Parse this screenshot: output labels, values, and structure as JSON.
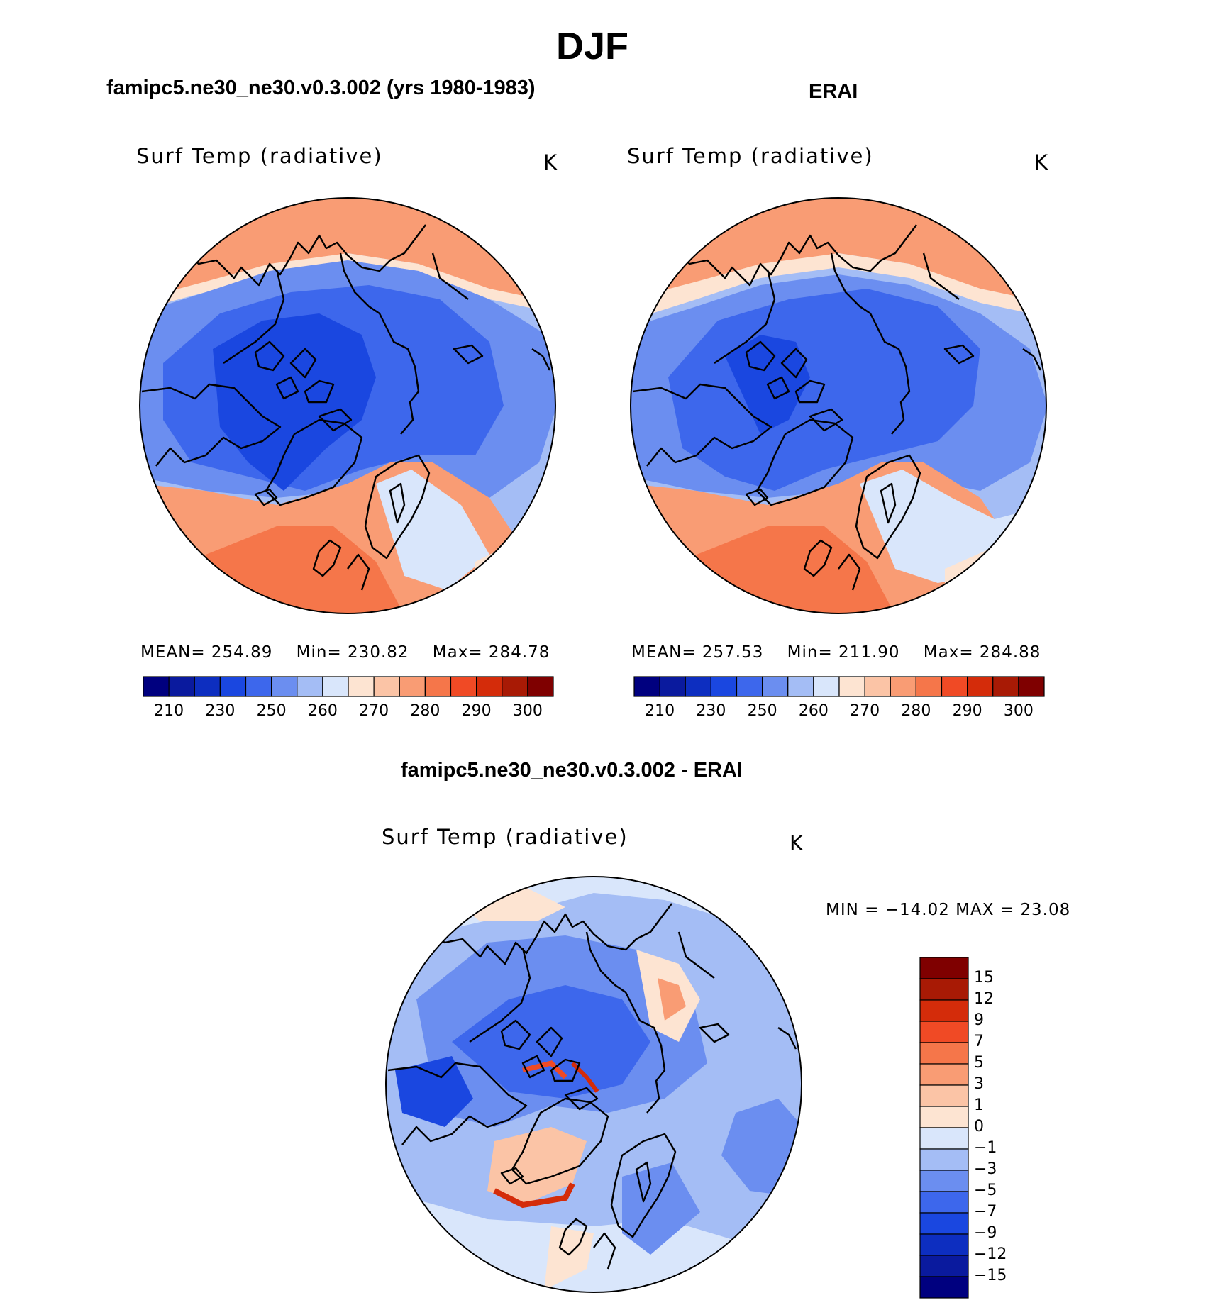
{
  "page": {
    "title": "DJF",
    "diff_title": "famipc5.ne30_ne30.v0.3.002 - ERAI"
  },
  "panels": [
    {
      "id": "model",
      "title": "famipc5.ne30_ne30.v0.3.002 (yrs 1980-1983)",
      "variable": "Surf Temp (radiative)",
      "units": "K",
      "stats": {
        "mean_label": "MEAN=",
        "mean": "254.89",
        "min_label": "Min=",
        "min": "230.82",
        "max_label": "Max=",
        "max": "284.78"
      }
    },
    {
      "id": "obs",
      "title": "ERAI",
      "variable": "Surf Temp (radiative)",
      "units": "K",
      "stats": {
        "mean_label": "MEAN=",
        "mean": "257.53",
        "min_label": "Min=",
        "min": "211.90",
        "max_label": "Max=",
        "max": "284.88"
      }
    },
    {
      "id": "diff",
      "title": "famipc5.ne30_ne30.v0.3.002 - ERAI",
      "variable": "Surf Temp (radiative)",
      "units": "K",
      "stats_text": "MIN = −14.02 MAX =   23.08"
    }
  ],
  "colorbars": {
    "absolute": {
      "colors": [
        "#00007f",
        "#0a1a9e",
        "#0d2ec0",
        "#1a47e0",
        "#3d67ec",
        "#6b8ef0",
        "#a4bdf5",
        "#d9e6fb",
        "#fde4d2",
        "#fbc4a6",
        "#f99c74",
        "#f5764a",
        "#f04a25",
        "#d42c0a",
        "#a81a05",
        "#7f0000"
      ],
      "ticks": [
        "210",
        "230",
        "250",
        "260",
        "270",
        "280",
        "290",
        "300"
      ]
    },
    "difference": {
      "colors": [
        "#00007f",
        "#0a1a9e",
        "#0d2ec0",
        "#1a47e0",
        "#3d67ec",
        "#6b8ef0",
        "#a4bdf5",
        "#d9e6fb",
        "#fde4d2",
        "#fbc4a6",
        "#f99c74",
        "#f5764a",
        "#f04a25",
        "#d42c0a",
        "#a81a05",
        "#7f0000"
      ],
      "ticks": [
        "15",
        "12",
        "9",
        "7",
        "5",
        "3",
        "1",
        "0",
        "−1",
        "−3",
        "−5",
        "−7",
        "−9",
        "−12",
        "−15"
      ]
    }
  },
  "chart_data": [
    {
      "type": "heatmap",
      "title": "famipc5.ne30_ne30.v0.3.002 (yrs 1980-1983)",
      "subtitle": "Surf Temp (radiative)",
      "units": "K",
      "projection": "north polar stereographic",
      "season": "DJF",
      "mean": 254.89,
      "min": 230.82,
      "max": 284.78,
      "color_levels": [
        210,
        230,
        250,
        260,
        270,
        280,
        290,
        300
      ]
    },
    {
      "type": "heatmap",
      "title": "ERAI",
      "subtitle": "Surf Temp (radiative)",
      "units": "K",
      "projection": "north polar stereographic",
      "season": "DJF",
      "mean": 257.53,
      "min": 211.9,
      "max": 284.88,
      "color_levels": [
        210,
        230,
        250,
        260,
        270,
        280,
        290,
        300
      ]
    },
    {
      "type": "heatmap",
      "title": "famipc5.ne30_ne30.v0.3.002 - ERAI",
      "subtitle": "Surf Temp (radiative)",
      "units": "K",
      "projection": "north polar stereographic",
      "season": "DJF",
      "min": -14.02,
      "max": 23.08,
      "color_levels": [
        -15,
        -12,
        -9,
        -7,
        -5,
        -3,
        -1,
        0,
        1,
        3,
        5,
        7,
        9,
        12,
        15
      ]
    }
  ]
}
